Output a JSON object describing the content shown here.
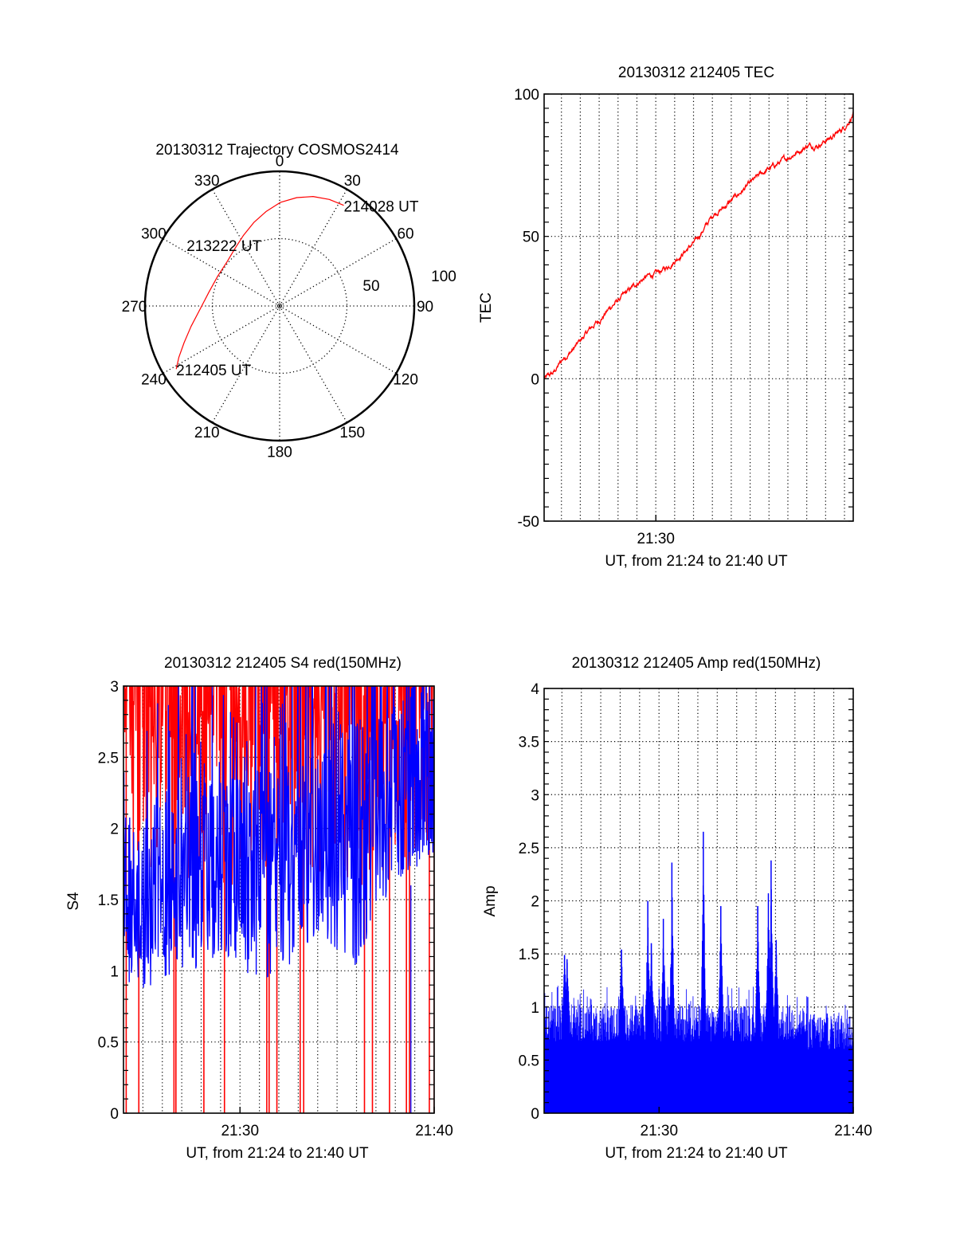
{
  "chart_data": [
    {
      "id": "trajectory",
      "type": "polar",
      "title": "20130312 Trajectory COSMOS2414",
      "angle_ticks": [
        "0",
        "30",
        "60",
        "90",
        "120",
        "150",
        "180",
        "210",
        "240",
        "270",
        "300",
        "330"
      ],
      "angle_values": [
        0,
        30,
        60,
        90,
        120,
        150,
        180,
        210,
        240,
        270,
        300,
        330
      ],
      "radial_max": 100,
      "radial_ticks": [
        50,
        100
      ],
      "radial_tick_labels": [
        "50",
        "100"
      ],
      "series_color": "#ff0000",
      "trajectory": [
        {
          "az": 238.6,
          "r": 90.0
        },
        {
          "az": 243.0,
          "r": 84.0
        },
        {
          "az": 249.0,
          "r": 76.0
        },
        {
          "az": 257.0,
          "r": 67.5
        },
        {
          "az": 268.0,
          "r": 59.0
        },
        {
          "az": 281.0,
          "r": 53.5
        },
        {
          "az": 296.0,
          "r": 51.0
        },
        {
          "az": 310.0,
          "r": 51.0
        },
        {
          "az": 322.0,
          "r": 54.0
        },
        {
          "az": 333.0,
          "r": 59.0
        },
        {
          "az": 343.0,
          "r": 65.0
        },
        {
          "az": 352.0,
          "r": 71.0
        },
        {
          "az": 0.5,
          "r": 77.0
        },
        {
          "az": 9.0,
          "r": 81.5
        },
        {
          "az": 17.0,
          "r": 85.0
        },
        {
          "az": 25.0,
          "r": 87.3
        },
        {
          "az": 32.5,
          "r": 88.6
        }
      ],
      "annotations": [
        {
          "text": "212405 UT",
          "az": 238.6,
          "r": 90.0
        },
        {
          "text": "213222 UT",
          "az": 318.8,
          "r": 51.0
        },
        {
          "text": "214028 UT",
          "az": 32.5,
          "r": 88.6
        }
      ]
    },
    {
      "id": "tec",
      "type": "line",
      "title": "20130312 212405 TEC",
      "xlabel": "UT, from 21:24 to 21:40 UT",
      "ylabel": "TEC",
      "x_unit": "minutes after 21:24:05 UT",
      "xlim": [
        0,
        16.38
      ],
      "ylim": [
        -50,
        100
      ],
      "yticks": [
        -50,
        0,
        50,
        100
      ],
      "ytick_labels": [
        "-50",
        "0",
        "50",
        "100"
      ],
      "xtick_labels": [
        {
          "x": 5.92,
          "label": "21:30"
        }
      ],
      "grid": true,
      "color": "#ff0000",
      "x": [
        0,
        0.5,
        1.0,
        1.5,
        2.0,
        2.5,
        3.0,
        3.5,
        4.0,
        4.5,
        5.0,
        5.5,
        6.0,
        6.5,
        7.0,
        7.5,
        8.0,
        8.5,
        9.0,
        9.5,
        10.0,
        10.5,
        11.0,
        11.5,
        12.0,
        12.5,
        13.0,
        13.5,
        14.0,
        14.5,
        15.0,
        15.5,
        16.0,
        16.38
      ],
      "y": [
        0,
        2,
        7,
        10,
        14,
        18,
        21,
        25,
        28,
        31,
        34,
        36,
        37,
        39,
        42,
        45,
        48,
        53,
        58,
        60,
        63,
        66,
        69,
        72,
        74,
        76,
        78,
        80,
        82,
        82,
        84,
        86,
        89,
        93
      ]
    },
    {
      "id": "s4",
      "type": "line",
      "title": "20130312 212405 S4 red(150MHz)",
      "xlabel": "UT, from 21:24 to 21:40 UT",
      "ylabel": "S4",
      "x_unit": "minutes after 21:24:00 UT",
      "xlim": [
        0,
        16
      ],
      "ylim": [
        0,
        3
      ],
      "yticks": [
        0,
        0.5,
        1,
        1.5,
        2,
        2.5,
        3
      ],
      "ytick_labels": [
        "0",
        "0.5",
        "1",
        "1.5",
        "2",
        "2.5",
        "3"
      ],
      "xtick_labels": [
        {
          "x": 6,
          "label": "21:30"
        },
        {
          "x": 16,
          "label": "21:40"
        }
      ],
      "grid": true,
      "series": [
        {
          "name": "blue",
          "color": "#0000ff",
          "x": [
            0,
            1,
            2,
            3,
            4,
            5,
            6,
            7,
            8,
            9,
            10,
            11,
            12,
            13,
            14,
            15,
            16
          ],
          "y_mean": [
            1.45,
            1.5,
            1.6,
            1.65,
            1.7,
            1.75,
            1.75,
            1.8,
            1.75,
            1.8,
            1.9,
            2.0,
            2.1,
            2.2,
            2.3,
            2.4,
            2.4
          ],
          "y_min": [
            1.0,
            1.05,
            1.1,
            1.05,
            1.0,
            1.1,
            1.0,
            0.85,
            1.0,
            1.05,
            1.3,
            1.1,
            1.0,
            1.4,
            1.6,
            1.7,
            1.8
          ]
        },
        {
          "name": "red",
          "color": "#ff0000",
          "dropouts_x": [
            0.14,
            0.79,
            2.6,
            2.7,
            4.14,
            5.2,
            7.38,
            7.5,
            7.9,
            9.1,
            9.28,
            12.41,
            12.82,
            13.7,
            14.57,
            14.73,
            15.75,
            16.0
          ]
        }
      ]
    },
    {
      "id": "amp",
      "type": "bar",
      "title": "20130312 212405 Amp red(150MHz)",
      "xlabel": "UT, from 21:24 to 21:40 UT",
      "ylabel": "Amp",
      "x_unit": "minutes after 21:24:05 UT",
      "xlim": [
        0,
        15.92
      ],
      "ylim": [
        0,
        4
      ],
      "yticks": [
        0,
        0.5,
        1,
        1.5,
        2,
        2.5,
        3,
        3.5,
        4
      ],
      "ytick_labels": [
        "0",
        "0.5",
        "1",
        "1.5",
        "2",
        "2.5",
        "3",
        "3.5",
        "4"
      ],
      "xtick_labels": [
        {
          "x": 5.92,
          "label": "21:30"
        },
        {
          "x": 15.92,
          "label": "21:40"
        }
      ],
      "grid": true,
      "color": "#0000ff",
      "baseline_mean": 0.85,
      "peaks": [
        {
          "x": 1.05,
          "y": 1.49
        },
        {
          "x": 1.18,
          "y": 1.45
        },
        {
          "x": 3.98,
          "y": 1.54
        },
        {
          "x": 5.34,
          "y": 2.0
        },
        {
          "x": 5.52,
          "y": 1.6
        },
        {
          "x": 6.14,
          "y": 1.83
        },
        {
          "x": 6.58,
          "y": 2.36
        },
        {
          "x": 8.2,
          "y": 2.65
        },
        {
          "x": 9.1,
          "y": 1.95
        },
        {
          "x": 11.0,
          "y": 1.95
        },
        {
          "x": 11.55,
          "y": 2.07
        },
        {
          "x": 11.69,
          "y": 2.38
        },
        {
          "x": 11.95,
          "y": 1.63
        }
      ]
    }
  ]
}
